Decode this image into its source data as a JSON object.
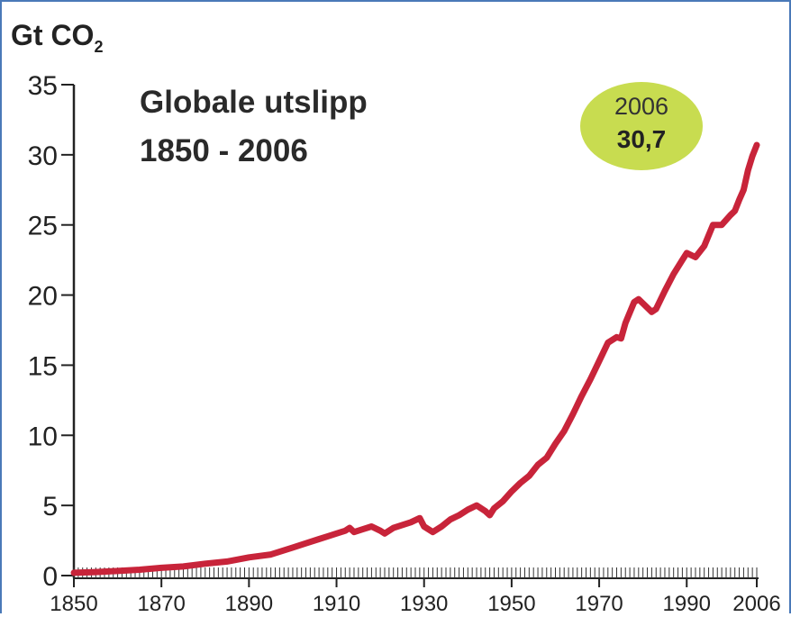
{
  "chart_data": {
    "type": "line",
    "title_line1": "Globale utslipp",
    "title_line2": "1850 - 2006",
    "unit_main": "Gt CO",
    "unit_sub": "2",
    "ylim": [
      0,
      35
    ],
    "xlim": [
      1850,
      2006
    ],
    "y_ticks": [
      "0",
      "5",
      "10",
      "15",
      "20",
      "25",
      "30",
      "35"
    ],
    "x_ticks": [
      "1850",
      "1870",
      "1890",
      "1910",
      "1930",
      "1950",
      "1970",
      "1990",
      "2006"
    ],
    "callout": {
      "year": "2006",
      "value": "30,7"
    },
    "colors": {
      "line": "#c8243a",
      "callout": "#c8dc50",
      "axis": "#222222",
      "frame": "#4a79b8"
    },
    "series": [
      {
        "x": [
          1850,
          1855,
          1860,
          1865,
          1870,
          1875,
          1880,
          1885,
          1890,
          1895,
          1900,
          1903,
          1906,
          1908,
          1910,
          1912,
          1913,
          1914,
          1916,
          1918,
          1920,
          1921,
          1923,
          1925,
          1927,
          1929,
          1930,
          1932,
          1934,
          1936,
          1938,
          1940,
          1942,
          1944,
          1945,
          1946,
          1948,
          1950,
          1952,
          1954,
          1956,
          1958,
          1960,
          1962,
          1964,
          1966,
          1968,
          1970,
          1972,
          1974,
          1975,
          1976,
          1978,
          1979,
          1980,
          1982,
          1983,
          1985,
          1987,
          1989,
          1990,
          1992,
          1994,
          1996,
          1998,
          2000,
          2001,
          2002,
          2003,
          2004,
          2005,
          2006
        ],
        "values": [
          0.2,
          0.25,
          0.33,
          0.42,
          0.55,
          0.65,
          0.85,
          1.0,
          1.3,
          1.5,
          2.0,
          2.3,
          2.6,
          2.8,
          3.0,
          3.2,
          3.4,
          3.1,
          3.3,
          3.5,
          3.2,
          3.0,
          3.4,
          3.6,
          3.8,
          4.1,
          3.5,
          3.1,
          3.5,
          4.0,
          4.3,
          4.7,
          5.0,
          4.6,
          4.3,
          4.8,
          5.3,
          6.0,
          6.6,
          7.1,
          7.9,
          8.4,
          9.4,
          10.3,
          11.5,
          12.8,
          14.0,
          15.3,
          16.6,
          17.0,
          16.9,
          18.0,
          19.5,
          19.7,
          19.4,
          18.8,
          19.0,
          20.3,
          21.5,
          22.5,
          23.0,
          22.7,
          23.5,
          25.0,
          25.0,
          25.7,
          26.0,
          26.8,
          27.5,
          28.9,
          29.9,
          30.7
        ]
      }
    ]
  }
}
